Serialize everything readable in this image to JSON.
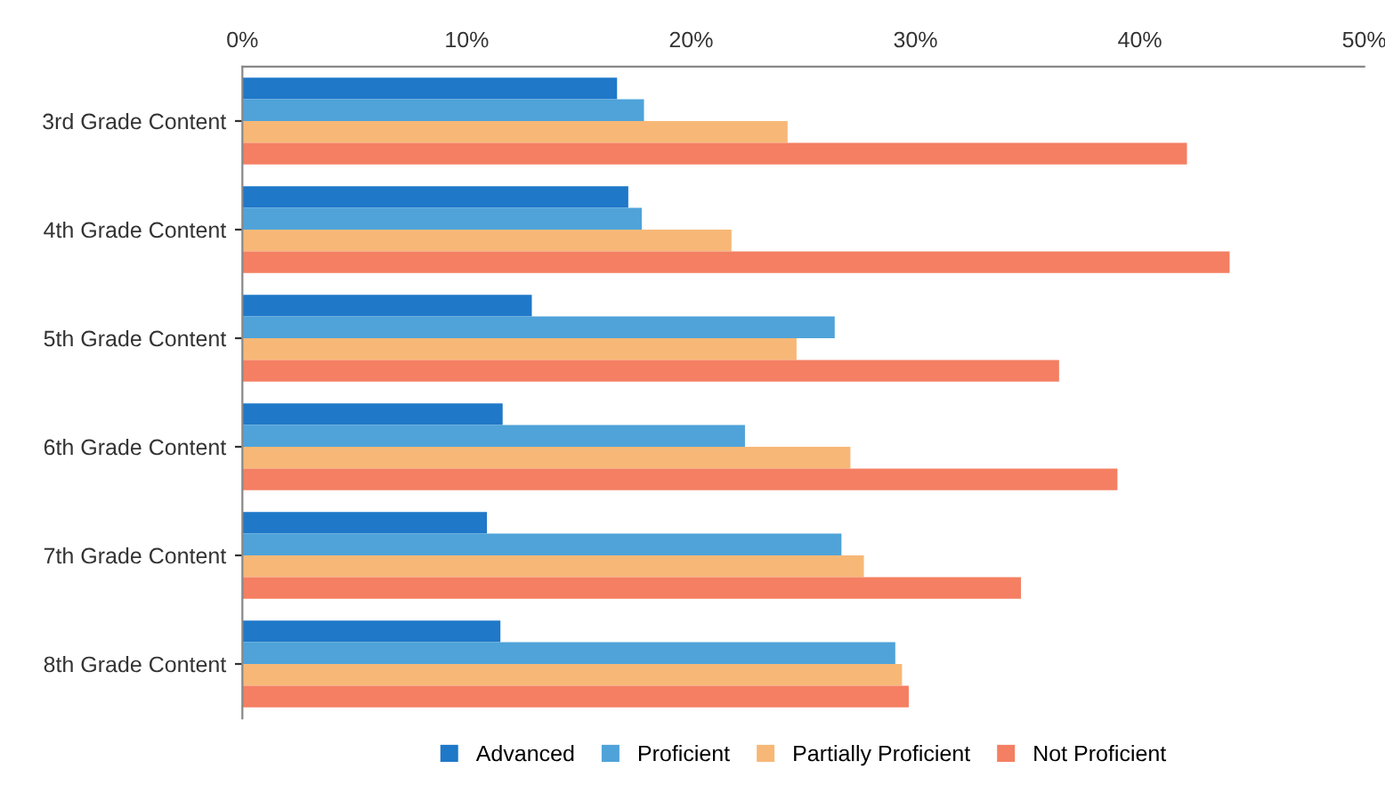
{
  "chart_data": {
    "type": "bar",
    "orientation": "horizontal",
    "categories": [
      "3rd Grade Content",
      "4th Grade Content",
      "5th Grade Content",
      "6th Grade Content",
      "7th Grade Content",
      "8th Grade Content"
    ],
    "series": [
      {
        "name": "Advanced",
        "color": "#1f78c8",
        "values": [
          16.7,
          17.2,
          12.9,
          11.6,
          10.9,
          11.5
        ]
      },
      {
        "name": "Proficient",
        "color": "#4fa3d9",
        "values": [
          17.9,
          17.8,
          26.4,
          22.4,
          26.7,
          29.1
        ]
      },
      {
        "name": "Partially Proficient",
        "color": "#f7b877",
        "values": [
          24.3,
          21.8,
          24.7,
          27.1,
          27.7,
          29.4
        ]
      },
      {
        "name": "Not Proficient",
        "color": "#f47f62",
        "values": [
          42.1,
          44.0,
          36.4,
          39.0,
          34.7,
          29.7
        ]
      }
    ],
    "xlim": [
      0,
      50
    ],
    "xticks": [
      {
        "value": 0,
        "label": "0%"
      },
      {
        "value": 10,
        "label": "10%"
      },
      {
        "value": 20,
        "label": "20%"
      },
      {
        "value": 30,
        "label": "30%"
      },
      {
        "value": 40,
        "label": "40%"
      },
      {
        "value": 50,
        "label": "50%"
      }
    ],
    "grid": false,
    "legend": "bottom"
  }
}
